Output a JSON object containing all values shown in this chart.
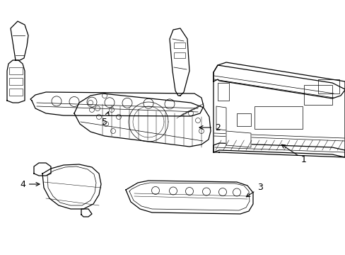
{
  "background_color": "#ffffff",
  "figsize": [
    4.89,
    3.6
  ],
  "dpi": 100,
  "line_color": "#000000",
  "line_width": 0.9,
  "thin_lw": 0.5,
  "label_fontsize": 9
}
